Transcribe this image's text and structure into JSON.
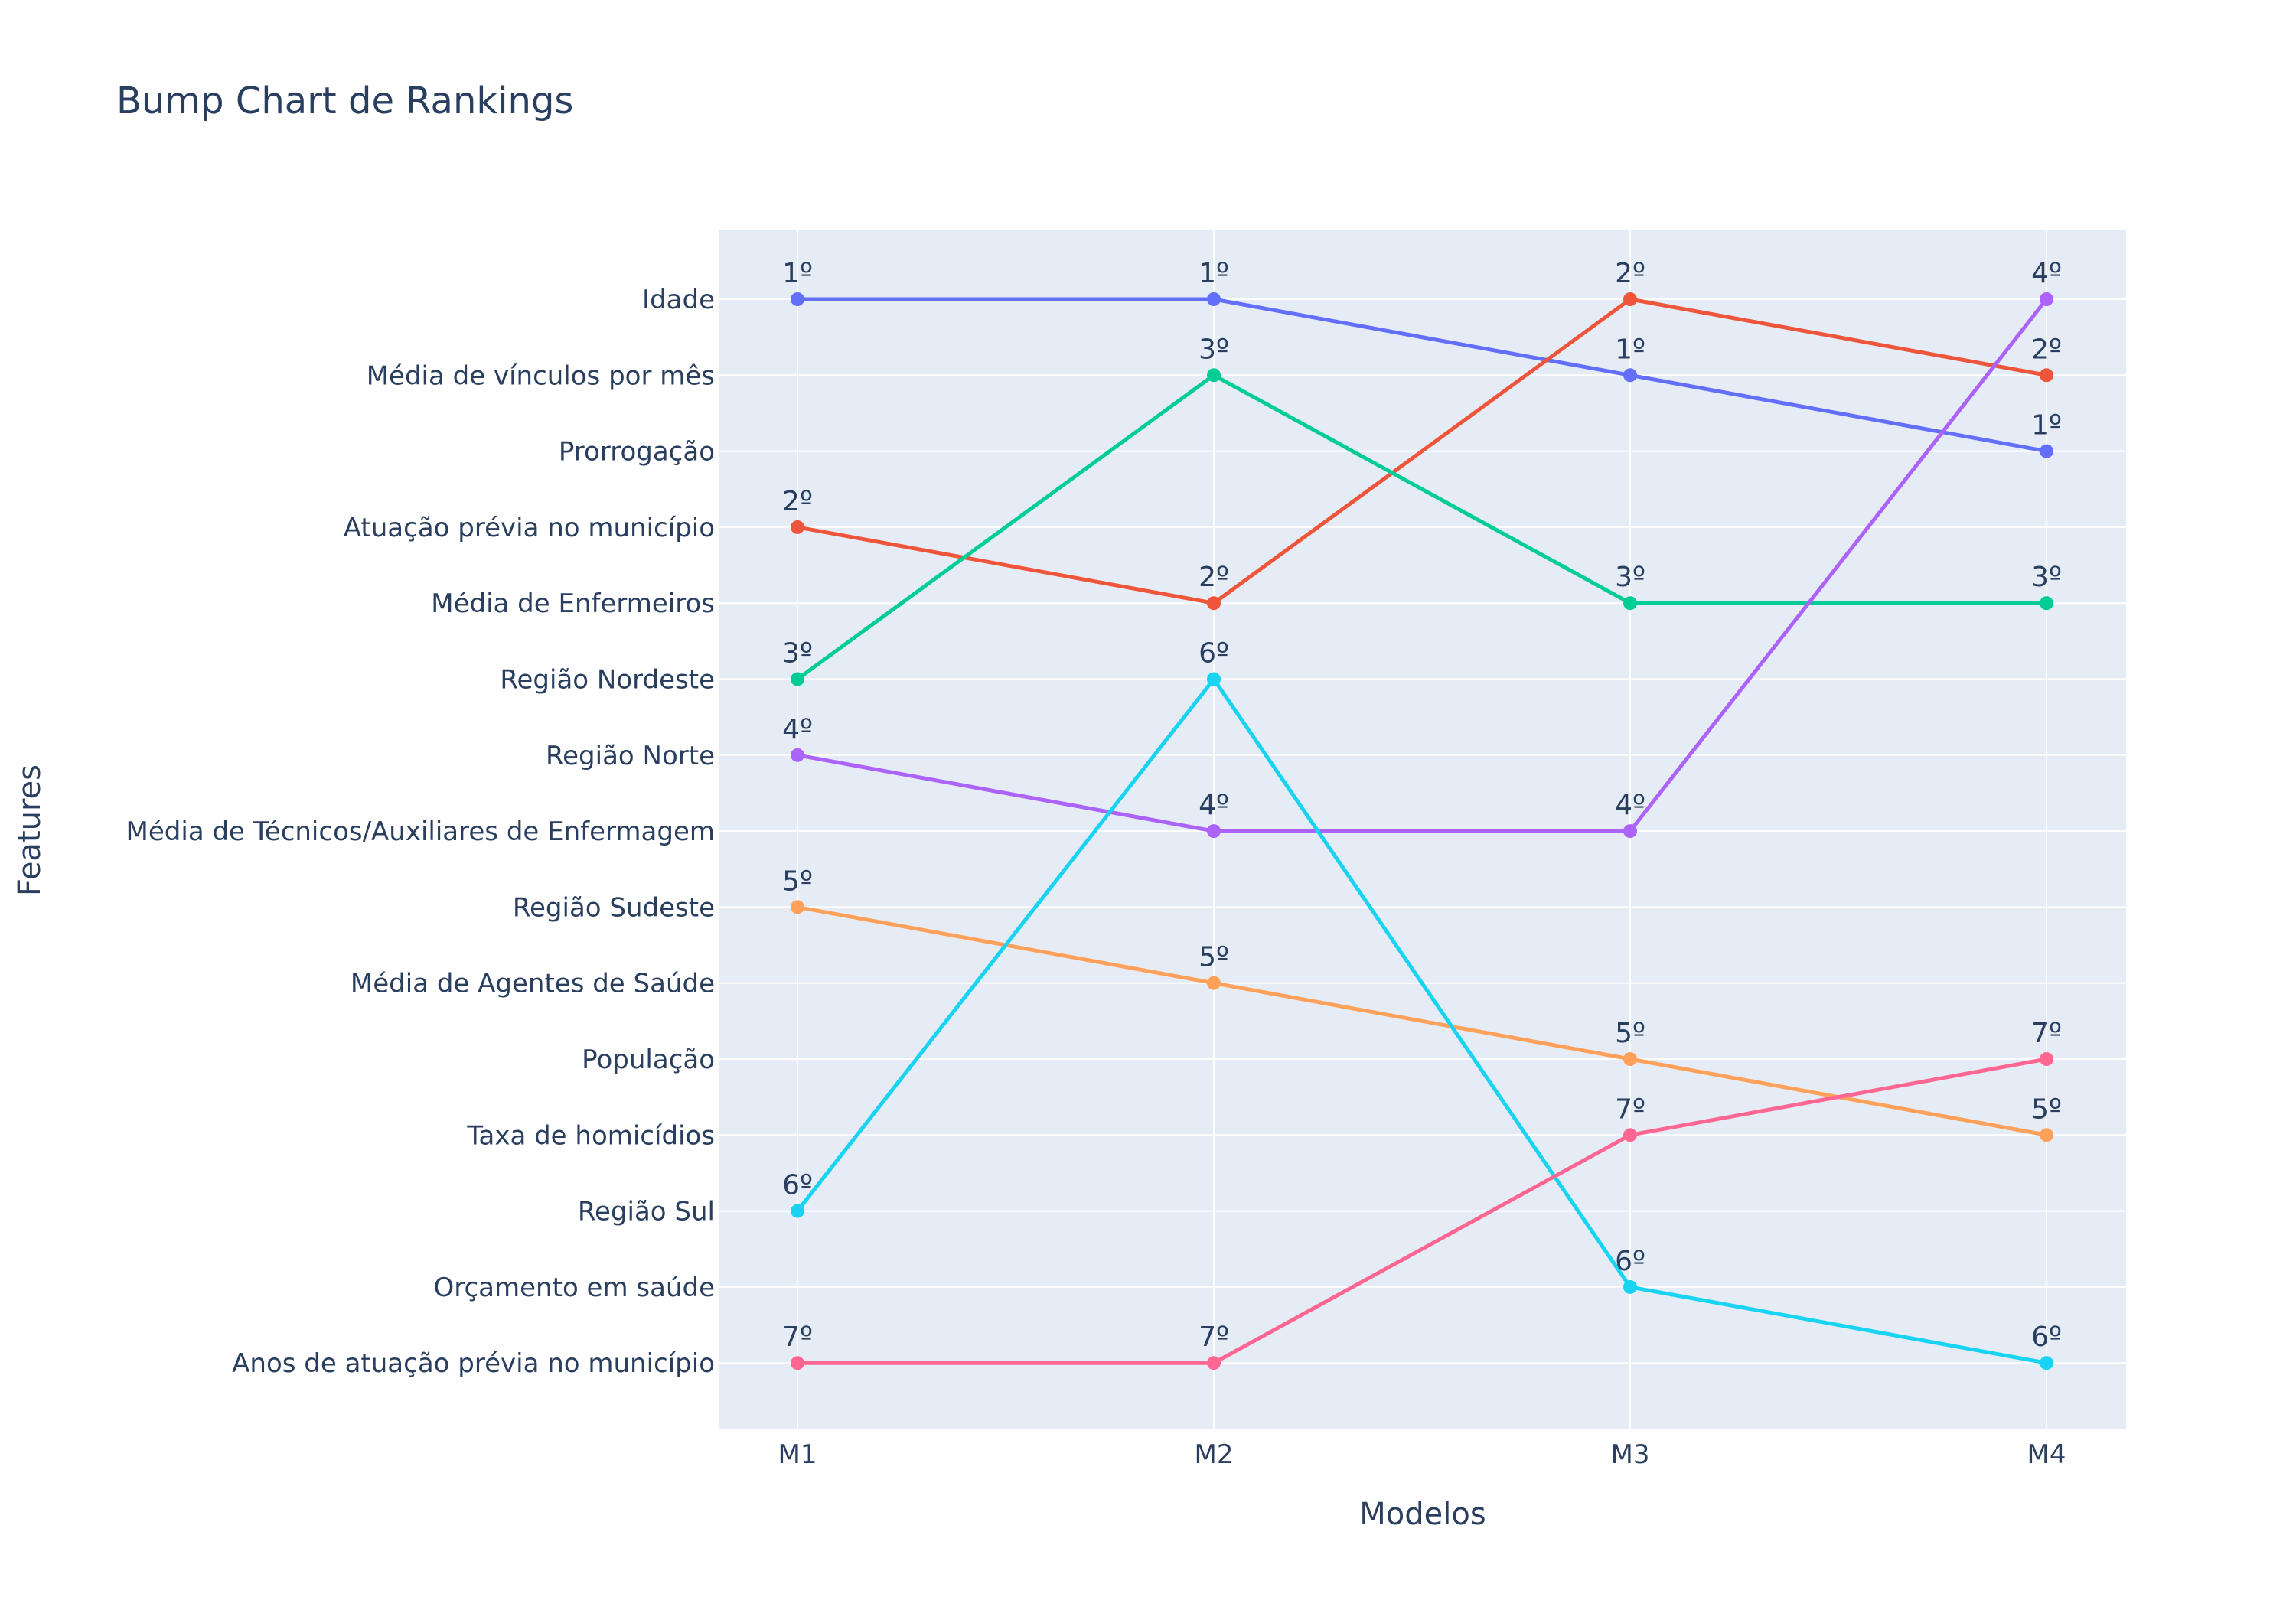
{
  "chart_data": {
    "type": "line",
    "title": "Bump Chart de Rankings",
    "xlabel": "Modelos",
    "ylabel": "Features",
    "categories": [
      "M1",
      "M2",
      "M3",
      "M4"
    ],
    "y_categories": [
      "Idade",
      "Média de vínculos por mês",
      "Prorrogação",
      "Atuação prévia no município",
      "Média de Enfermeiros",
      "Região Nordeste",
      "Região Norte",
      "Média de Técnicos/Auxiliares de Enfermagem",
      "Região Sudeste",
      "Média de Agentes de Saúde",
      "População",
      "Taxa de homicídios",
      "Região Sul",
      "Orçamento em saúde",
      "Anos de atuação prévia no município"
    ],
    "grid": true,
    "legend": "none",
    "series": [
      {
        "color": "#636efa",
        "points": [
          "Idade",
          "Idade",
          "Média de vínculos por mês",
          "Prorrogação"
        ],
        "labels": [
          "1º",
          "1º",
          "1º",
          "1º"
        ]
      },
      {
        "color": "#ef553b",
        "points": [
          "Atuação prévia no município",
          "Média de Enfermeiros",
          "Idade",
          "Média de vínculos por mês"
        ],
        "labels": [
          "2º",
          "2º",
          "2º",
          "2º"
        ]
      },
      {
        "color": "#00cc96",
        "points": [
          "Região Nordeste",
          "Média de vínculos por mês",
          "Média de Enfermeiros",
          "Média de Enfermeiros"
        ],
        "labels": [
          "3º",
          "3º",
          "3º",
          "3º"
        ]
      },
      {
        "color": "#ab63fa",
        "points": [
          "Região Norte",
          "Média de Técnicos/Auxiliares de Enfermagem",
          "Média de Técnicos/Auxiliares de Enfermagem",
          "Idade"
        ],
        "labels": [
          "4º",
          "4º",
          "4º",
          "4º"
        ]
      },
      {
        "color": "#ffa15a",
        "points": [
          "Região Sudeste",
          "Média de Agentes de Saúde",
          "População",
          "Taxa de homicídios"
        ],
        "labels": [
          "5º",
          "5º",
          "5º",
          "5º"
        ]
      },
      {
        "color": "#19d3f3",
        "points": [
          "Região Sul",
          "Região Nordeste",
          "Orçamento em saúde",
          "Anos de atuação prévia no município"
        ],
        "labels": [
          "6º",
          "6º",
          "6º",
          "6º"
        ]
      },
      {
        "color": "#ff6692",
        "points": [
          "Anos de atuação prévia no município",
          "Anos de atuação prévia no município",
          "Taxa de homicídios",
          "População"
        ],
        "labels": [
          "7º",
          "7º",
          "7º",
          "7º"
        ]
      }
    ]
  }
}
